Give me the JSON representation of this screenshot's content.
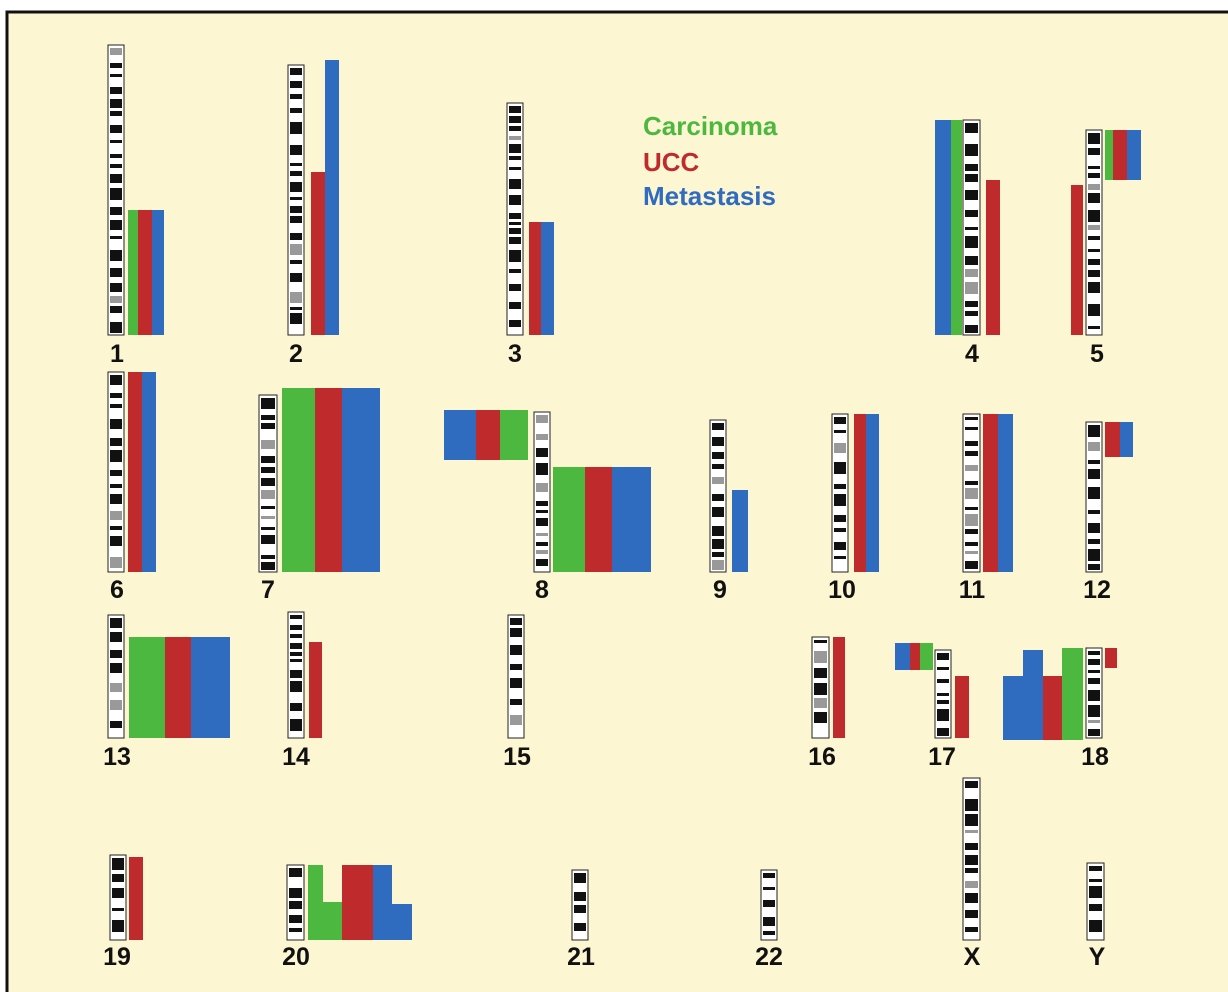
{
  "legend": [
    {
      "label": "Carcinoma",
      "color": "#4cb840"
    },
    {
      "label": "UCC",
      "color": "#bf2a2c"
    },
    {
      "label": "Metastasis",
      "color": "#2f6cc0"
    }
  ],
  "chromosomes": [
    {
      "label": "1"
    },
    {
      "label": "2"
    },
    {
      "label": "3"
    },
    {
      "label": "4"
    },
    {
      "label": "5"
    },
    {
      "label": "6"
    },
    {
      "label": "7"
    },
    {
      "label": "8"
    },
    {
      "label": "9"
    },
    {
      "label": "10"
    },
    {
      "label": "11"
    },
    {
      "label": "12"
    },
    {
      "label": "13"
    },
    {
      "label": "14"
    },
    {
      "label": "15"
    },
    {
      "label": "16"
    },
    {
      "label": "17"
    },
    {
      "label": "18"
    },
    {
      "label": "19"
    },
    {
      "label": "20"
    },
    {
      "label": "21"
    },
    {
      "label": "22"
    },
    {
      "label": "X"
    },
    {
      "label": "Y"
    }
  ]
}
